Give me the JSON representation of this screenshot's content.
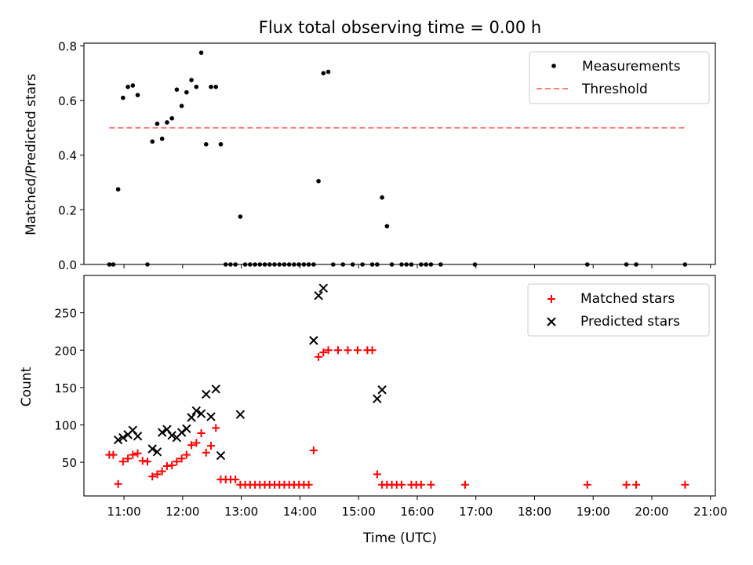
{
  "chart_data": [
    {
      "type": "scatter",
      "title": "Flux total observing time = 0.00 h",
      "ylabel": "Matched/Predicted stars",
      "xlabel": "",
      "xlim": [
        "10:19",
        "21:05"
      ],
      "ylim": [
        0,
        0.81
      ],
      "yticks": [
        "0.0",
        "0.2",
        "0.4",
        "0.6",
        "0.8"
      ],
      "grid": false,
      "legend": {
        "placement": "top-right",
        "entries": [
          "Measurements",
          "Threshold"
        ]
      },
      "threshold": {
        "name": "Threshold",
        "y": 0.5,
        "x_start": "10:45",
        "x_end": "20:35",
        "color": "#ff7f7f",
        "style": "dashed"
      },
      "series": [
        {
          "name": "Measurements",
          "marker": "dot",
          "color": "#000000",
          "points": [
            [
              "10:45",
              0.0
            ],
            [
              "10:49",
              0.0
            ],
            [
              "10:54",
              0.275
            ],
            [
              "10:59",
              0.61
            ],
            [
              "11:04",
              0.65
            ],
            [
              "11:09",
              0.655
            ],
            [
              "11:14",
              0.62
            ],
            [
              "11:24",
              0.0
            ],
            [
              "11:29",
              0.45
            ],
            [
              "11:34",
              0.515
            ],
            [
              "11:39",
              0.46
            ],
            [
              "11:44",
              0.52
            ],
            [
              "11:49",
              0.535
            ],
            [
              "11:54",
              0.64
            ],
            [
              "11:59",
              0.58
            ],
            [
              "12:04",
              0.63
            ],
            [
              "12:09",
              0.675
            ],
            [
              "12:14",
              0.65
            ],
            [
              "12:19",
              0.775
            ],
            [
              "12:24",
              0.44
            ],
            [
              "12:29",
              0.65
            ],
            [
              "12:34",
              0.65
            ],
            [
              "12:39",
              0.44
            ],
            [
              "12:44",
              0.0
            ],
            [
              "12:49",
              0.0
            ],
            [
              "12:54",
              0.0
            ],
            [
              "12:59",
              0.175
            ],
            [
              "13:04",
              0.0
            ],
            [
              "13:09",
              0.0
            ],
            [
              "13:14",
              0.0
            ],
            [
              "13:19",
              0.0
            ],
            [
              "13:24",
              0.0
            ],
            [
              "13:29",
              0.0
            ],
            [
              "13:34",
              0.0
            ],
            [
              "13:39",
              0.0
            ],
            [
              "13:44",
              0.0
            ],
            [
              "13:49",
              0.0
            ],
            [
              "13:54",
              0.0
            ],
            [
              "13:59",
              0.0
            ],
            [
              "14:04",
              0.0
            ],
            [
              "14:09",
              0.0
            ],
            [
              "14:14",
              0.0
            ],
            [
              "14:19",
              0.305
            ],
            [
              "14:24",
              0.7
            ],
            [
              "14:29",
              0.705
            ],
            [
              "14:34",
              0.0
            ],
            [
              "14:44",
              0.0
            ],
            [
              "14:54",
              0.0
            ],
            [
              "15:04",
              0.0
            ],
            [
              "15:14",
              0.0
            ],
            [
              "15:19",
              0.0
            ],
            [
              "15:24",
              0.245
            ],
            [
              "15:29",
              0.14
            ],
            [
              "15:34",
              0.0
            ],
            [
              "15:44",
              0.0
            ],
            [
              "15:49",
              0.0
            ],
            [
              "15:54",
              0.0
            ],
            [
              "16:04",
              0.0
            ],
            [
              "16:09",
              0.0
            ],
            [
              "16:14",
              0.0
            ],
            [
              "16:24",
              0.0
            ],
            [
              "16:59",
              0.0
            ],
            [
              "18:54",
              0.0
            ],
            [
              "19:34",
              0.0
            ],
            [
              "19:44",
              0.0
            ],
            [
              "20:34",
              0.0
            ]
          ]
        }
      ]
    },
    {
      "type": "scatter",
      "title": "",
      "xlabel": "Time (UTC)",
      "ylabel": "Count",
      "xlim": [
        "10:19",
        "21:05"
      ],
      "ylim": [
        5,
        300
      ],
      "yticks": [
        "50",
        "100",
        "150",
        "200",
        "250"
      ],
      "xticks": [
        "11:00",
        "12:00",
        "13:00",
        "14:00",
        "15:00",
        "16:00",
        "17:00",
        "18:00",
        "19:00",
        "20:00",
        "21:00"
      ],
      "grid": false,
      "legend": {
        "placement": "top-right",
        "entries": [
          "Matched stars",
          "Predicted stars"
        ]
      },
      "series": [
        {
          "name": "Matched stars",
          "marker": "plus",
          "color": "#ff0000",
          "points": [
            [
              "10:45",
              60
            ],
            [
              "10:49",
              60
            ],
            [
              "10:54",
              21
            ],
            [
              "10:59",
              51
            ],
            [
              "11:04",
              55
            ],
            [
              "11:09",
              60
            ],
            [
              "11:14",
              62
            ],
            [
              "11:19",
              52
            ],
            [
              "11:24",
              51
            ],
            [
              "11:29",
              31
            ],
            [
              "11:34",
              34
            ],
            [
              "11:39",
              38
            ],
            [
              "11:44",
              45
            ],
            [
              "11:49",
              46
            ],
            [
              "11:54",
              51
            ],
            [
              "11:59",
              55
            ],
            [
              "12:04",
              60
            ],
            [
              "12:09",
              73
            ],
            [
              "12:14",
              76
            ],
            [
              "12:19",
              89
            ],
            [
              "12:24",
              63
            ],
            [
              "12:29",
              72
            ],
            [
              "12:34",
              96
            ],
            [
              "12:39",
              27
            ],
            [
              "12:44",
              27
            ],
            [
              "12:49",
              27
            ],
            [
              "12:54",
              27
            ],
            [
              "12:59",
              20
            ],
            [
              "13:04",
              20
            ],
            [
              "13:09",
              20
            ],
            [
              "13:14",
              20
            ],
            [
              "13:19",
              20
            ],
            [
              "13:24",
              20
            ],
            [
              "13:29",
              20
            ],
            [
              "13:34",
              20
            ],
            [
              "13:39",
              20
            ],
            [
              "13:44",
              20
            ],
            [
              "13:49",
              20
            ],
            [
              "13:54",
              20
            ],
            [
              "13:59",
              20
            ],
            [
              "14:04",
              20
            ],
            [
              "14:09",
              20
            ],
            [
              "14:14",
              66
            ],
            [
              "14:19",
              191
            ],
            [
              "14:24",
              197
            ],
            [
              "14:29",
              200
            ],
            [
              "14:39",
              200
            ],
            [
              "14:49",
              200
            ],
            [
              "14:59",
              200
            ],
            [
              "15:09",
              200
            ],
            [
              "15:14",
              200
            ],
            [
              "15:19",
              34
            ],
            [
              "15:24",
              20
            ],
            [
              "15:29",
              20
            ],
            [
              "15:34",
              20
            ],
            [
              "15:39",
              20
            ],
            [
              "15:44",
              20
            ],
            [
              "15:54",
              20
            ],
            [
              "15:59",
              20
            ],
            [
              "16:04",
              20
            ],
            [
              "16:14",
              20
            ],
            [
              "16:49",
              20
            ],
            [
              "18:54",
              20
            ],
            [
              "19:34",
              20
            ],
            [
              "19:44",
              20
            ],
            [
              "20:34",
              20
            ]
          ]
        },
        {
          "name": "Predicted stars",
          "marker": "x",
          "color": "#000000",
          "points": [
            [
              "10:54",
              80
            ],
            [
              "10:59",
              83
            ],
            [
              "11:04",
              87
            ],
            [
              "11:09",
              93
            ],
            [
              "11:14",
              85
            ],
            [
              "11:29",
              68
            ],
            [
              "11:34",
              64
            ],
            [
              "11:39",
              90
            ],
            [
              "11:44",
              94
            ],
            [
              "11:49",
              86
            ],
            [
              "11:54",
              83
            ],
            [
              "11:59",
              90
            ],
            [
              "12:04",
              95
            ],
            [
              "12:09",
              110
            ],
            [
              "12:14",
              119
            ],
            [
              "12:19",
              115
            ],
            [
              "12:24",
              141
            ],
            [
              "12:29",
              111
            ],
            [
              "12:34",
              148
            ],
            [
              "12:39",
              59
            ],
            [
              "12:59",
              114
            ],
            [
              "14:14",
              213
            ],
            [
              "14:19",
              273
            ],
            [
              "14:24",
              283
            ],
            [
              "15:19",
              135
            ],
            [
              "15:24",
              147
            ]
          ]
        }
      ]
    }
  ]
}
